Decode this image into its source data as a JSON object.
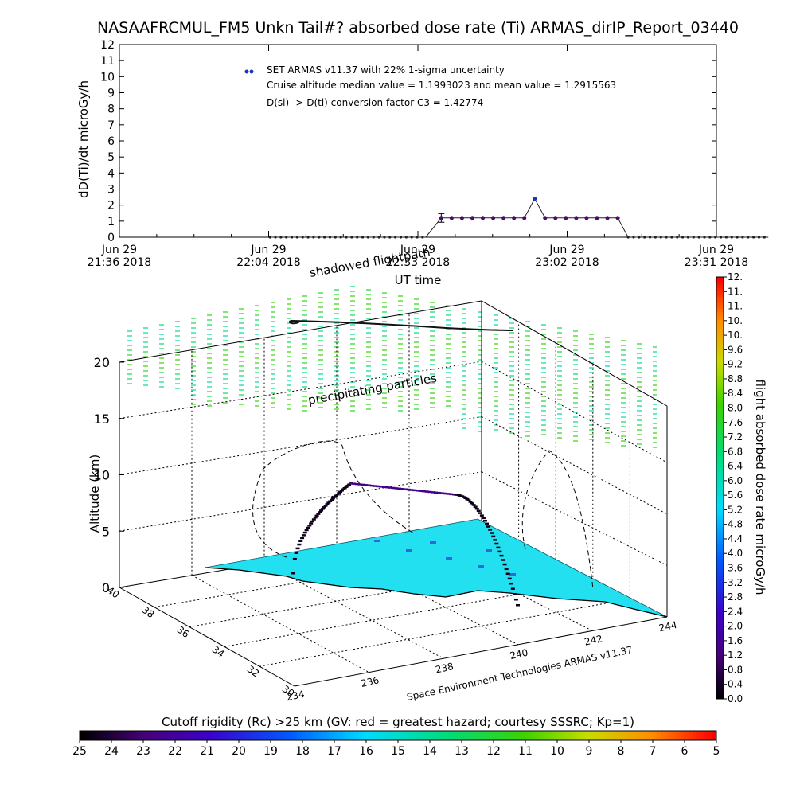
{
  "chart_data": [
    {
      "type": "scatter",
      "title": "NASAAFRCMUL_FM5 Unkn Tail#? absorbed dose rate (Ti) ARMAS_dirIP_Report_03440",
      "ylabel": "dD(Ti)/dt microGy/h",
      "xlabel": "UT time",
      "ylim": [
        0,
        12
      ],
      "yticks": [
        "0",
        "1",
        "2",
        "3",
        "4",
        "5",
        "6",
        "7",
        "8",
        "9",
        "10",
        "11",
        "12"
      ],
      "xticks": [
        {
          "line1": "Jun 29",
          "line2": "21:36 2018"
        },
        {
          "line1": "Jun 29",
          "line2": "22:04 2018"
        },
        {
          "line1": "Jun 29",
          "line2": "22:33 2018"
        },
        {
          "line1": "Jun 29",
          "line2": "23:02 2018"
        },
        {
          "line1": "Jun 29",
          "line2": "23:31 2018"
        }
      ],
      "legend": "SET ARMAS v11.37 with 22% 1-sigma uncertainty",
      "annotations": [
        "Cruise altitude median value = 1.1993023 and mean value = 1.2915563",
        "D(si) -> D(ti) conversion factor C3 = 1.42774"
      ],
      "x_minutes": [
        0,
        5,
        10,
        15,
        20,
        25,
        30,
        35,
        40,
        45,
        50,
        55,
        60,
        65,
        70,
        75,
        80,
        85,
        90,
        95,
        100,
        105,
        110,
        115
      ],
      "series": [
        {
          "values_before": 0.0,
          "cruise": [
            {
              "x": 62,
              "y": 1.2,
              "err": 0.27
            },
            {
              "x": 64,
              "y": 1.2
            },
            {
              "x": 66,
              "y": 1.2
            },
            {
              "x": 68,
              "y": 1.2
            },
            {
              "x": 70,
              "y": 1.2
            },
            {
              "x": 72,
              "y": 1.2
            },
            {
              "x": 74,
              "y": 1.2
            },
            {
              "x": 76,
              "y": 1.2
            },
            {
              "x": 78,
              "y": 1.2
            },
            {
              "x": 80,
              "y": 2.4
            },
            {
              "x": 82,
              "y": 1.2
            },
            {
              "x": 84,
              "y": 1.2
            },
            {
              "x": 86,
              "y": 1.2
            },
            {
              "x": 88,
              "y": 1.2
            },
            {
              "x": 90,
              "y": 1.2
            },
            {
              "x": 92,
              "y": 1.2
            },
            {
              "x": 94,
              "y": 1.2
            },
            {
              "x": 96,
              "y": 1.2
            }
          ],
          "zero_range_a": [
            29,
            59
          ],
          "zero_range_b": [
            98,
            125
          ]
        }
      ]
    },
    {
      "type": "scatter",
      "xlabel": "Space Environment Technologies ARMAS v11.37",
      "ylabel": "Altitude (km)",
      "zticks": [
        "0",
        "5",
        "10",
        "15",
        "20"
      ],
      "lat_ticks": [
        "40",
        "38",
        "36",
        "34",
        "32",
        "30"
      ],
      "lon_ticks": [
        "234",
        "236",
        "238",
        "240",
        "242",
        "244"
      ],
      "annotations": [
        "shadowed flightpath",
        "precipitating particles"
      ],
      "colorbar_label": "flight absorbed dose rate microGy/h",
      "colorbar_ticks": [
        "0.0",
        "0.4",
        "0.8",
        "1.2",
        "1.6",
        "2.0",
        "2.4",
        "2.8",
        "3.2",
        "3.6",
        "4.0",
        "4.4",
        "4.8",
        "5.2",
        "5.6",
        "6.0",
        "6.4",
        "6.8",
        "7.2",
        "7.6",
        "8.0",
        "8.4",
        "8.8",
        "9.2",
        "9.6",
        "10.",
        "10.",
        "11.",
        "11.",
        "12."
      ],
      "bottom_colorbar_title": "Cutoff rigidity (Rc) >25 km (GV: red = greatest hazard; courtesy SSSRC; Kp=1)",
      "bottom_colorbar_ticks": [
        "25",
        "24",
        "23",
        "22",
        "21",
        "20",
        "19",
        "18",
        "17",
        "16",
        "15",
        "14",
        "13",
        "12",
        "11",
        "10",
        "9",
        "8",
        "7",
        "6",
        "5"
      ]
    }
  ]
}
